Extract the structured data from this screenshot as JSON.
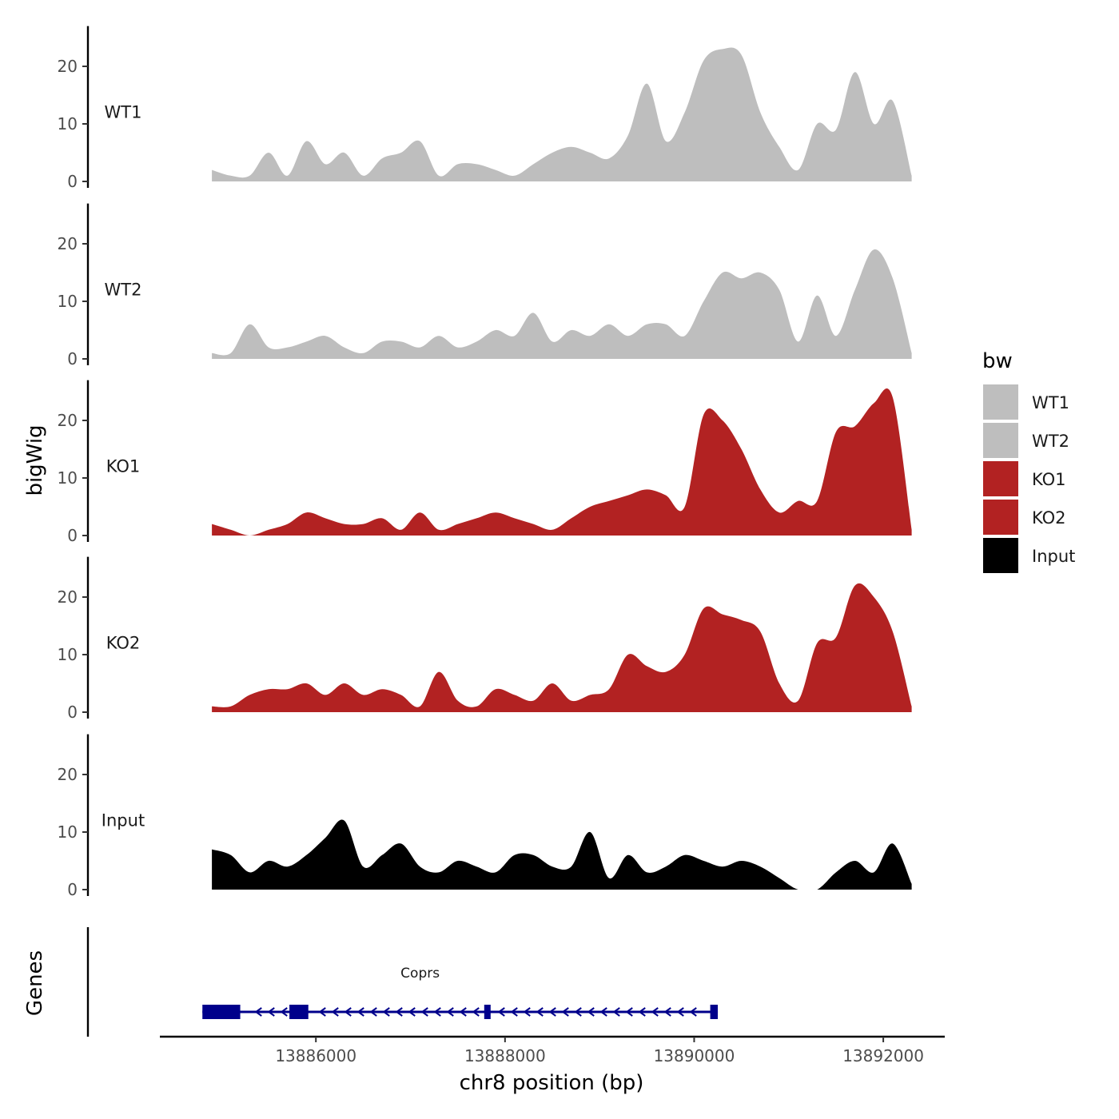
{
  "chart_data": {
    "type": "area",
    "title": "",
    "ylabel": "bigWig",
    "xlabel": "chr8 position (bp)",
    "xlim": [
      13884350,
      13892650
    ],
    "ylim": [
      0,
      27
    ],
    "yticks": [
      0,
      10,
      20
    ],
    "xticks": [
      13886000,
      13888000,
      13890000,
      13892000
    ],
    "x": [
      13884900,
      13885100,
      13885300,
      13885500,
      13885700,
      13885900,
      13886100,
      13886300,
      13886500,
      13886700,
      13886900,
      13887100,
      13887300,
      13887500,
      13887700,
      13887900,
      13888100,
      13888300,
      13888500,
      13888700,
      13888900,
      13889100,
      13889300,
      13889500,
      13889700,
      13889900,
      13890100,
      13890300,
      13890500,
      13890700,
      13890900,
      13891100,
      13891300,
      13891500,
      13891700,
      13891900,
      13892100,
      13892300
    ],
    "series": [
      {
        "name": "WT1",
        "track_label": "WT1",
        "color": "#BEBEBE",
        "values": [
          2,
          1,
          1,
          5,
          1,
          7,
          3,
          5,
          1,
          4,
          5,
          7,
          1,
          3,
          3,
          2,
          1,
          3,
          5,
          6,
          5,
          4,
          8,
          17,
          7,
          12,
          21,
          23,
          22,
          12,
          6,
          2,
          10,
          9,
          19,
          10,
          14,
          1
        ]
      },
      {
        "name": "WT2",
        "track_label": "WT2",
        "color": "#BEBEBE",
        "values": [
          1,
          1,
          6,
          2,
          2,
          3,
          4,
          2,
          1,
          3,
          3,
          2,
          4,
          2,
          3,
          5,
          4,
          8,
          3,
          5,
          4,
          6,
          4,
          6,
          6,
          4,
          10,
          15,
          14,
          15,
          12,
          3,
          11,
          4,
          12,
          19,
          14,
          1
        ]
      },
      {
        "name": "KO1",
        "track_label": "KO1",
        "color": "#B22222",
        "values": [
          2,
          1,
          0,
          1,
          2,
          4,
          3,
          2,
          2,
          3,
          1,
          4,
          1,
          2,
          3,
          4,
          3,
          2,
          1,
          3,
          5,
          6,
          7,
          8,
          7,
          5,
          21,
          20,
          15,
          8,
          4,
          6,
          6,
          18,
          19,
          23,
          24,
          1
        ]
      },
      {
        "name": "KO2",
        "track_label": "KO2",
        "color": "#B22222",
        "values": [
          1,
          1,
          3,
          4,
          4,
          5,
          3,
          5,
          3,
          4,
          3,
          1,
          7,
          2,
          1,
          4,
          3,
          2,
          5,
          2,
          3,
          4,
          10,
          8,
          7,
          10,
          18,
          17,
          16,
          14,
          5,
          2,
          12,
          13,
          22,
          20,
          14,
          1
        ]
      },
      {
        "name": "Input",
        "track_label": "Input",
        "color": "#000000",
        "values": [
          7,
          6,
          3,
          5,
          4,
          6,
          9,
          12,
          4,
          6,
          8,
          4,
          3,
          5,
          4,
          3,
          6,
          6,
          4,
          4,
          10,
          2,
          6,
          3,
          4,
          6,
          5,
          4,
          5,
          4,
          2,
          0,
          0,
          3,
          5,
          3,
          8,
          1
        ]
      }
    ],
    "legend": {
      "title": "bw",
      "position": "right",
      "entries": [
        {
          "label": "WT1",
          "color": "#BEBEBE"
        },
        {
          "label": "WT2",
          "color": "#BEBEBE"
        },
        {
          "label": "KO1",
          "color": "#B22222"
        },
        {
          "label": "KO2",
          "color": "#B22222"
        },
        {
          "label": "Input",
          "color": "#000000"
        }
      ]
    },
    "genes_track": {
      "ylabel": "Genes",
      "color": "#00008B",
      "genes": [
        {
          "name": "Coprs",
          "strand": "-",
          "start": 13884800,
          "end": 13890250,
          "exons": [
            [
              13884800,
              13885200
            ],
            [
              13885720,
              13885920
            ],
            [
              13887780,
              13887830
            ],
            [
              13890170,
              13890250
            ]
          ]
        }
      ]
    }
  }
}
